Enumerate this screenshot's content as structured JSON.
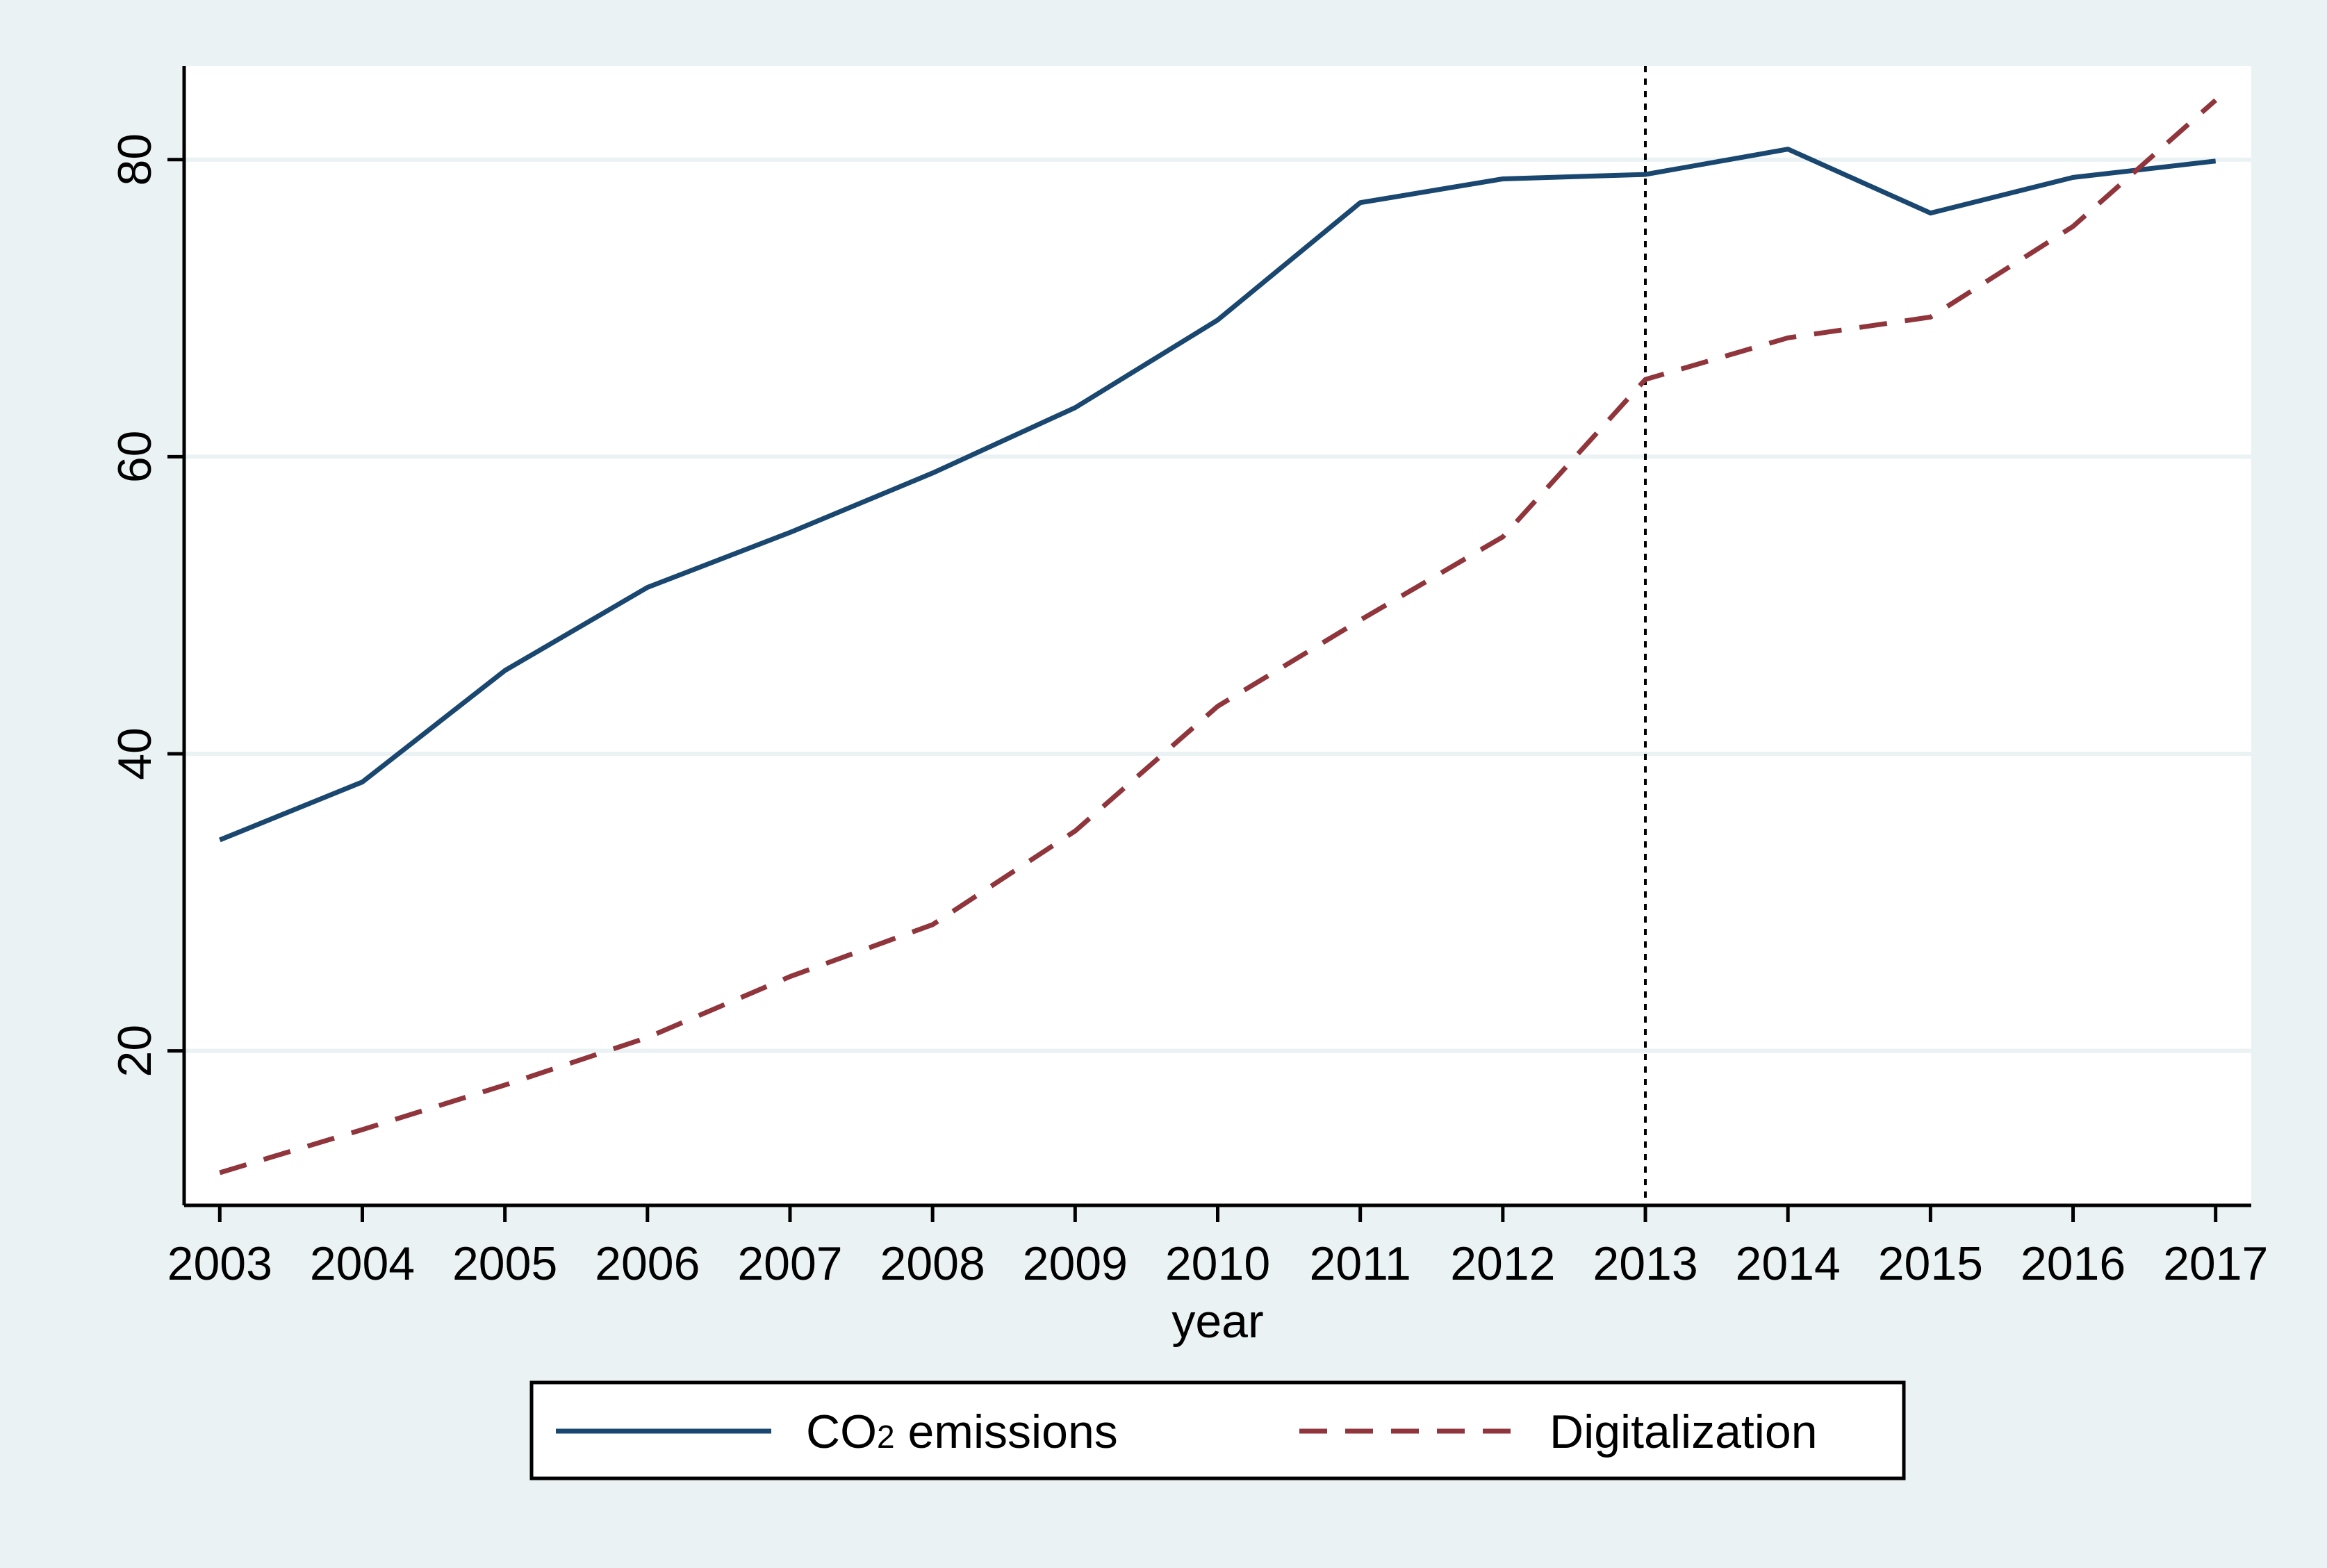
{
  "colors": {
    "outer_background": "#eaf2f3",
    "plot_background": "#ffffff",
    "grid": "#eaf2f3",
    "axis": "#000000",
    "series_co2": "#1a476f",
    "series_digital": "#90353b",
    "reference_line": "#000000"
  },
  "chart_data": {
    "type": "line",
    "title": "",
    "xlabel": "year",
    "ylabel": "",
    "x": [
      2003,
      2004,
      2005,
      2006,
      2007,
      2008,
      2009,
      2010,
      2011,
      2012,
      2013,
      2014,
      2015,
      2016,
      2017
    ],
    "xtick_labels": [
      "2003",
      "2004",
      "2005",
      "2006",
      "2007",
      "2008",
      "2009",
      "2010",
      "2011",
      "2012",
      "2013",
      "2014",
      "2015",
      "2016",
      "2017"
    ],
    "xlim": [
      2002.75,
      2017.25
    ],
    "ylim": [
      9.6,
      86.3
    ],
    "yticks": [
      20,
      40,
      60,
      80
    ],
    "ytick_labels": [
      "20",
      "40",
      "60",
      "80"
    ],
    "grid": true,
    "reference_lines": [
      {
        "axis": "x",
        "value": 2013,
        "style": "dotted"
      }
    ],
    "series": [
      {
        "name": "CO₂ emissions",
        "label_main": "CO",
        "label_sub": "2",
        "label_rest": " emissions",
        "style": "solid",
        "values": [
          34.2,
          38.1,
          45.6,
          51.2,
          54.9,
          58.9,
          63.3,
          69.2,
          77.1,
          78.7,
          79.0,
          80.7,
          76.4,
          78.8,
          79.9
        ]
      },
      {
        "name": "Digitalization",
        "style": "dashed",
        "values": [
          11.8,
          14.7,
          17.7,
          20.9,
          25.0,
          28.5,
          34.8,
          43.2,
          49.0,
          54.6,
          65.2,
          68.0,
          69.4,
          75.5,
          84.0
        ]
      }
    ],
    "legend": {
      "position": "bottom",
      "entries": [
        "CO₂ emissions",
        "Digitalization"
      ]
    }
  }
}
